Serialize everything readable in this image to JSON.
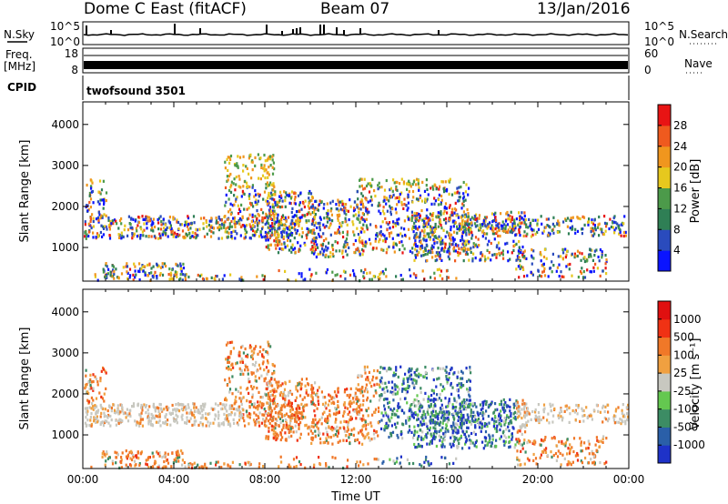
{
  "header": {
    "station": "Dome C East (fitACF)",
    "beam": "Beam 07",
    "date": "13/Jan/2016"
  },
  "side_labels": {
    "nsky": "N.Sky",
    "freq_line1": "Freq.",
    "freq_line2": "[MHz]",
    "cpid": "CPID",
    "nsearch": "N.Search",
    "nave": "Nave"
  },
  "cpid_value": "twofsound 3501",
  "strip_ticks": {
    "nsky_left": [
      "10^5",
      "10^0"
    ],
    "nsky_right": [
      "10^5",
      "10^0"
    ],
    "freq_left": [
      "18",
      "8"
    ],
    "freq_right": [
      "60",
      "0"
    ]
  },
  "colors": {
    "power_scale": [
      "#0a14ff",
      "#2a4bbd",
      "#2f7f55",
      "#4c9a4a",
      "#e6c81e",
      "#f0961e",
      "#ef5a1e",
      "#e81414"
    ],
    "velocity_scale": [
      "#1e32c8",
      "#2a5fa8",
      "#3c8c64",
      "#64c850",
      "#c8c8c0",
      "#f0a040",
      "#f07828",
      "#f03214",
      "#e01010"
    ]
  },
  "chart_data": [
    {
      "type": "heatmap",
      "quantity": "power",
      "xlabel": "",
      "ylabel": "Slant Range [km]",
      "x_ticks": [
        "00:00",
        "04:00",
        "08:00",
        "12:00",
        "16:00",
        "20:00",
        "00:00"
      ],
      "y_ticks": [
        1000,
        2000,
        3000,
        4000
      ],
      "xlim_hours": [
        0,
        24
      ],
      "ylim_km": [
        180,
        4550
      ],
      "colorbar_label": "Power [dB]",
      "colorbar_ticks": [
        4,
        8,
        12,
        16,
        20,
        24,
        28
      ],
      "colorbar_range": [
        0,
        32
      ]
    },
    {
      "type": "heatmap",
      "quantity": "velocity",
      "xlabel": "Time UT",
      "ylabel": "Slant Range [km]",
      "x_ticks": [
        "00:00",
        "04:00",
        "08:00",
        "12:00",
        "16:00",
        "20:00",
        "00:00"
      ],
      "y_ticks": [
        1000,
        2000,
        3000,
        4000
      ],
      "xlim_hours": [
        0,
        24
      ],
      "ylim_km": [
        180,
        4550
      ],
      "colorbar_label": "Velocity [m s⁻¹]",
      "colorbar_ticks": [
        1000,
        500,
        100,
        25,
        -25,
        -100,
        -500,
        -1000
      ]
    }
  ]
}
